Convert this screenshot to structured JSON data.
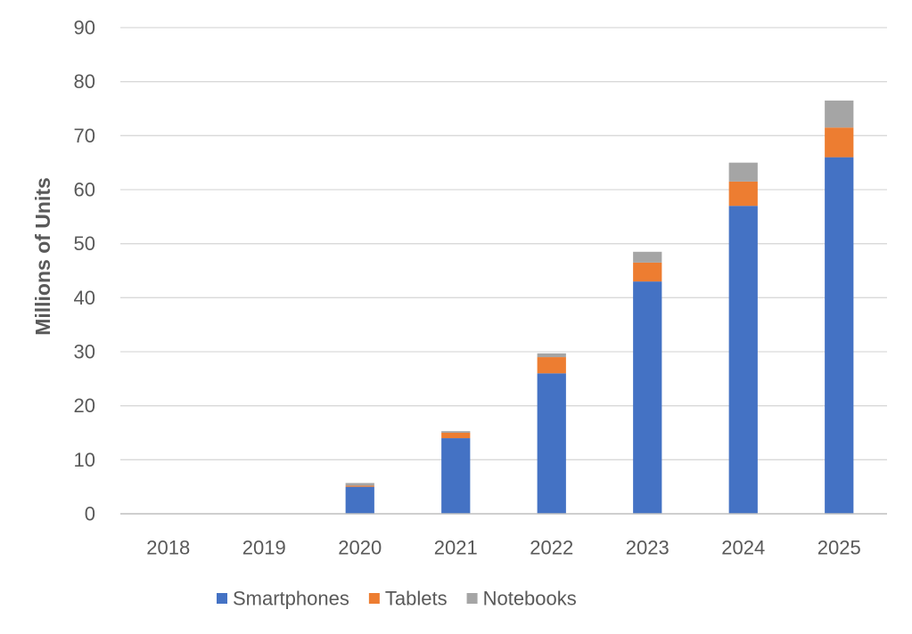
{
  "chart_data": {
    "type": "bar",
    "stacked": true,
    "title": "",
    "xlabel": "",
    "ylabel": "Millions of Units",
    "ylim": [
      0,
      90
    ],
    "yticks": [
      0,
      10,
      20,
      30,
      40,
      50,
      60,
      70,
      80,
      90
    ],
    "grid": true,
    "legend_position": "bottom",
    "categories": [
      "2018",
      "2019",
      "2020",
      "2021",
      "2022",
      "2023",
      "2024",
      "2025"
    ],
    "series": [
      {
        "name": "Smartphones",
        "color": "#4472C4",
        "values": [
          0,
          0,
          5,
          14,
          26,
          43,
          57,
          66
        ]
      },
      {
        "name": "Tablets",
        "color": "#ED7D31",
        "values": [
          0,
          0,
          0.2,
          1,
          3,
          3.5,
          4.5,
          5.5
        ]
      },
      {
        "name": "Notebooks",
        "color": "#A5A5A5",
        "values": [
          0,
          0,
          0.5,
          0.3,
          0.7,
          2,
          3.5,
          5
        ]
      }
    ]
  }
}
